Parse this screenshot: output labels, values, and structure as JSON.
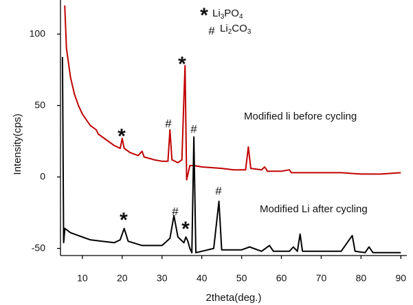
{
  "chart_data": {
    "type": "line",
    "x_label": "2theta(deg.)",
    "y_label": "Intensity(cps)",
    "xlim": [
      4.5,
      91.5
    ],
    "ylim": [
      -55,
      120
    ],
    "xticks": [
      10,
      20,
      30,
      40,
      50,
      60,
      70,
      80,
      90
    ],
    "yticks": [
      -50,
      0,
      50,
      100
    ],
    "series": [
      {
        "name": "Modified li before cycling",
        "color": "#c00000",
        "x": [
          5.5,
          6,
          7,
          8,
          9,
          10,
          12,
          13.5,
          14,
          16,
          18,
          19.5,
          20,
          20.5,
          22,
          24,
          25,
          25.5,
          28,
          30,
          31.5,
          32,
          32.5,
          34,
          35,
          35.5,
          35.8,
          36.2,
          37,
          38,
          40,
          45,
          48,
          51,
          51.7,
          52.3,
          55,
          55.8,
          56.5,
          60,
          62,
          62.5,
          65,
          70,
          75,
          80,
          85,
          90
        ],
        "values": [
          125,
          90,
          70,
          58,
          50,
          44,
          36,
          33,
          30,
          26,
          22,
          20,
          27,
          20,
          17,
          15,
          18,
          14,
          12,
          11,
          11,
          33,
          12,
          10,
          12,
          55,
          78,
          -2,
          8,
          8,
          7,
          6,
          5,
          5,
          21,
          6,
          5,
          7,
          4,
          4,
          5,
          3,
          3,
          3,
          3,
          2,
          2,
          3
        ]
      },
      {
        "name": "Modified Li after cycling",
        "color": "#000000",
        "x": [
          5,
          5.3,
          5.6,
          7,
          9,
          10,
          12,
          15,
          18,
          19.5,
          20.5,
          21.5,
          25,
          30,
          32,
          33,
          34,
          35.5,
          36,
          36.5,
          37,
          37.5,
          38,
          38.5,
          40,
          43,
          44.3,
          45,
          50,
          52,
          55,
          57,
          58,
          62,
          63,
          64,
          64.7,
          65.3,
          70,
          75,
          77.8,
          78.5,
          81,
          82,
          83,
          90
        ],
        "values": [
          84,
          -46,
          -36,
          -39,
          -41,
          -42,
          -44,
          -45,
          -46,
          -44,
          -36,
          -45,
          -48,
          -48,
          -43,
          -27,
          -42,
          -46,
          -42,
          -45,
          -50,
          -53,
          28,
          -53,
          -52,
          -50,
          -17,
          -51,
          -51,
          -49,
          -52,
          -48,
          -52,
          -52,
          -49,
          -52,
          -40,
          -52,
          -52,
          -52,
          -41,
          -52,
          -53,
          -49,
          -53,
          -53
        ]
      }
    ],
    "annotations": [
      "*",
      "#",
      "*",
      "#",
      "*",
      "#",
      "*",
      "#"
    ],
    "legend": [
      {
        "symbol": "*",
        "formula": [
          "Li",
          "3",
          "PO",
          "4"
        ]
      },
      {
        "symbol": "#",
        "formula": [
          "Li",
          "2",
          "CO",
          "3"
        ]
      }
    ]
  }
}
